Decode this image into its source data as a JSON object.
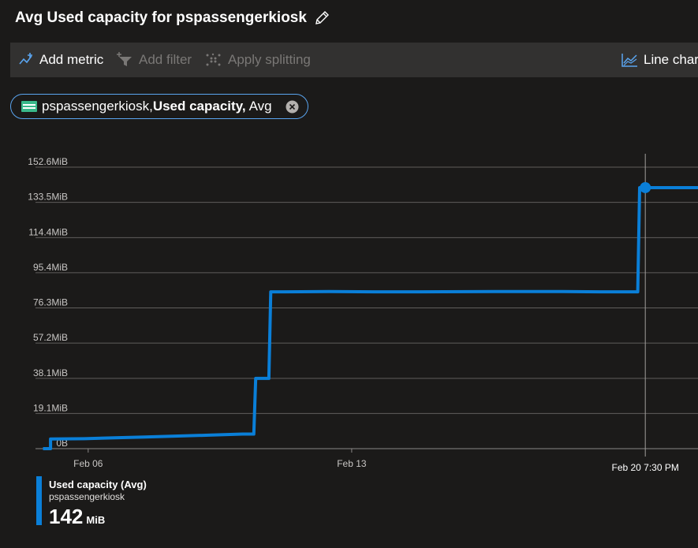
{
  "header": {
    "title": "Avg Used capacity for pspassengerkiosk"
  },
  "toolbar": {
    "add_metric": "Add metric",
    "add_filter": "Add filter",
    "apply_splitting": "Apply splitting",
    "line_chart": "Line chart"
  },
  "metric_pill": {
    "resource": "pspassengerkiosk,",
    "metric": "Used capacity,",
    "aggregation": "Avg"
  },
  "chart_data": {
    "type": "line",
    "y_ticks": [
      "0B",
      "19.1MiB",
      "38.1MiB",
      "57.2MiB",
      "76.3MiB",
      "95.4MiB",
      "114.4MiB",
      "133.5MiB",
      "152.6MiB"
    ],
    "y_tick_values": [
      0,
      19.1,
      38.1,
      57.2,
      76.3,
      95.4,
      114.4,
      133.5,
      152.6
    ],
    "ylim": [
      0,
      152.6
    ],
    "x_ticks": [
      "Feb 06",
      "Feb 13"
    ],
    "x_tick_days": [
      6,
      13
    ],
    "xlim": [
      4.6,
      22.2
    ],
    "cursor_label": "Feb 20 7:30 PM",
    "cursor_day": 20.8,
    "grid": true,
    "series": [
      {
        "color": "#0a7fd8",
        "points": [
          [
            4.8,
            0
          ],
          [
            5.0,
            0
          ],
          [
            5.0,
            5.2
          ],
          [
            5.9,
            5.4
          ],
          [
            6.7,
            5.9
          ],
          [
            7.5,
            6.3
          ],
          [
            8.3,
            6.8
          ],
          [
            9.2,
            7.3
          ],
          [
            10.1,
            7.9
          ],
          [
            10.4,
            7.9
          ],
          [
            10.45,
            38.1
          ],
          [
            10.8,
            38.1
          ],
          [
            10.85,
            85.0
          ],
          [
            11.2,
            85.0
          ],
          [
            12.4,
            85.2
          ],
          [
            13.6,
            85.0
          ],
          [
            14.8,
            85.0
          ],
          [
            16.8,
            85.2
          ],
          [
            18.6,
            85.2
          ],
          [
            19.6,
            85.0
          ],
          [
            20.6,
            85.0
          ],
          [
            20.65,
            141.5
          ],
          [
            22.2,
            141.5
          ]
        ]
      }
    ]
  },
  "legend": {
    "name": "Used capacity (Avg)",
    "resource": "pspassengerkiosk",
    "value": "142",
    "unit": "MiB"
  }
}
